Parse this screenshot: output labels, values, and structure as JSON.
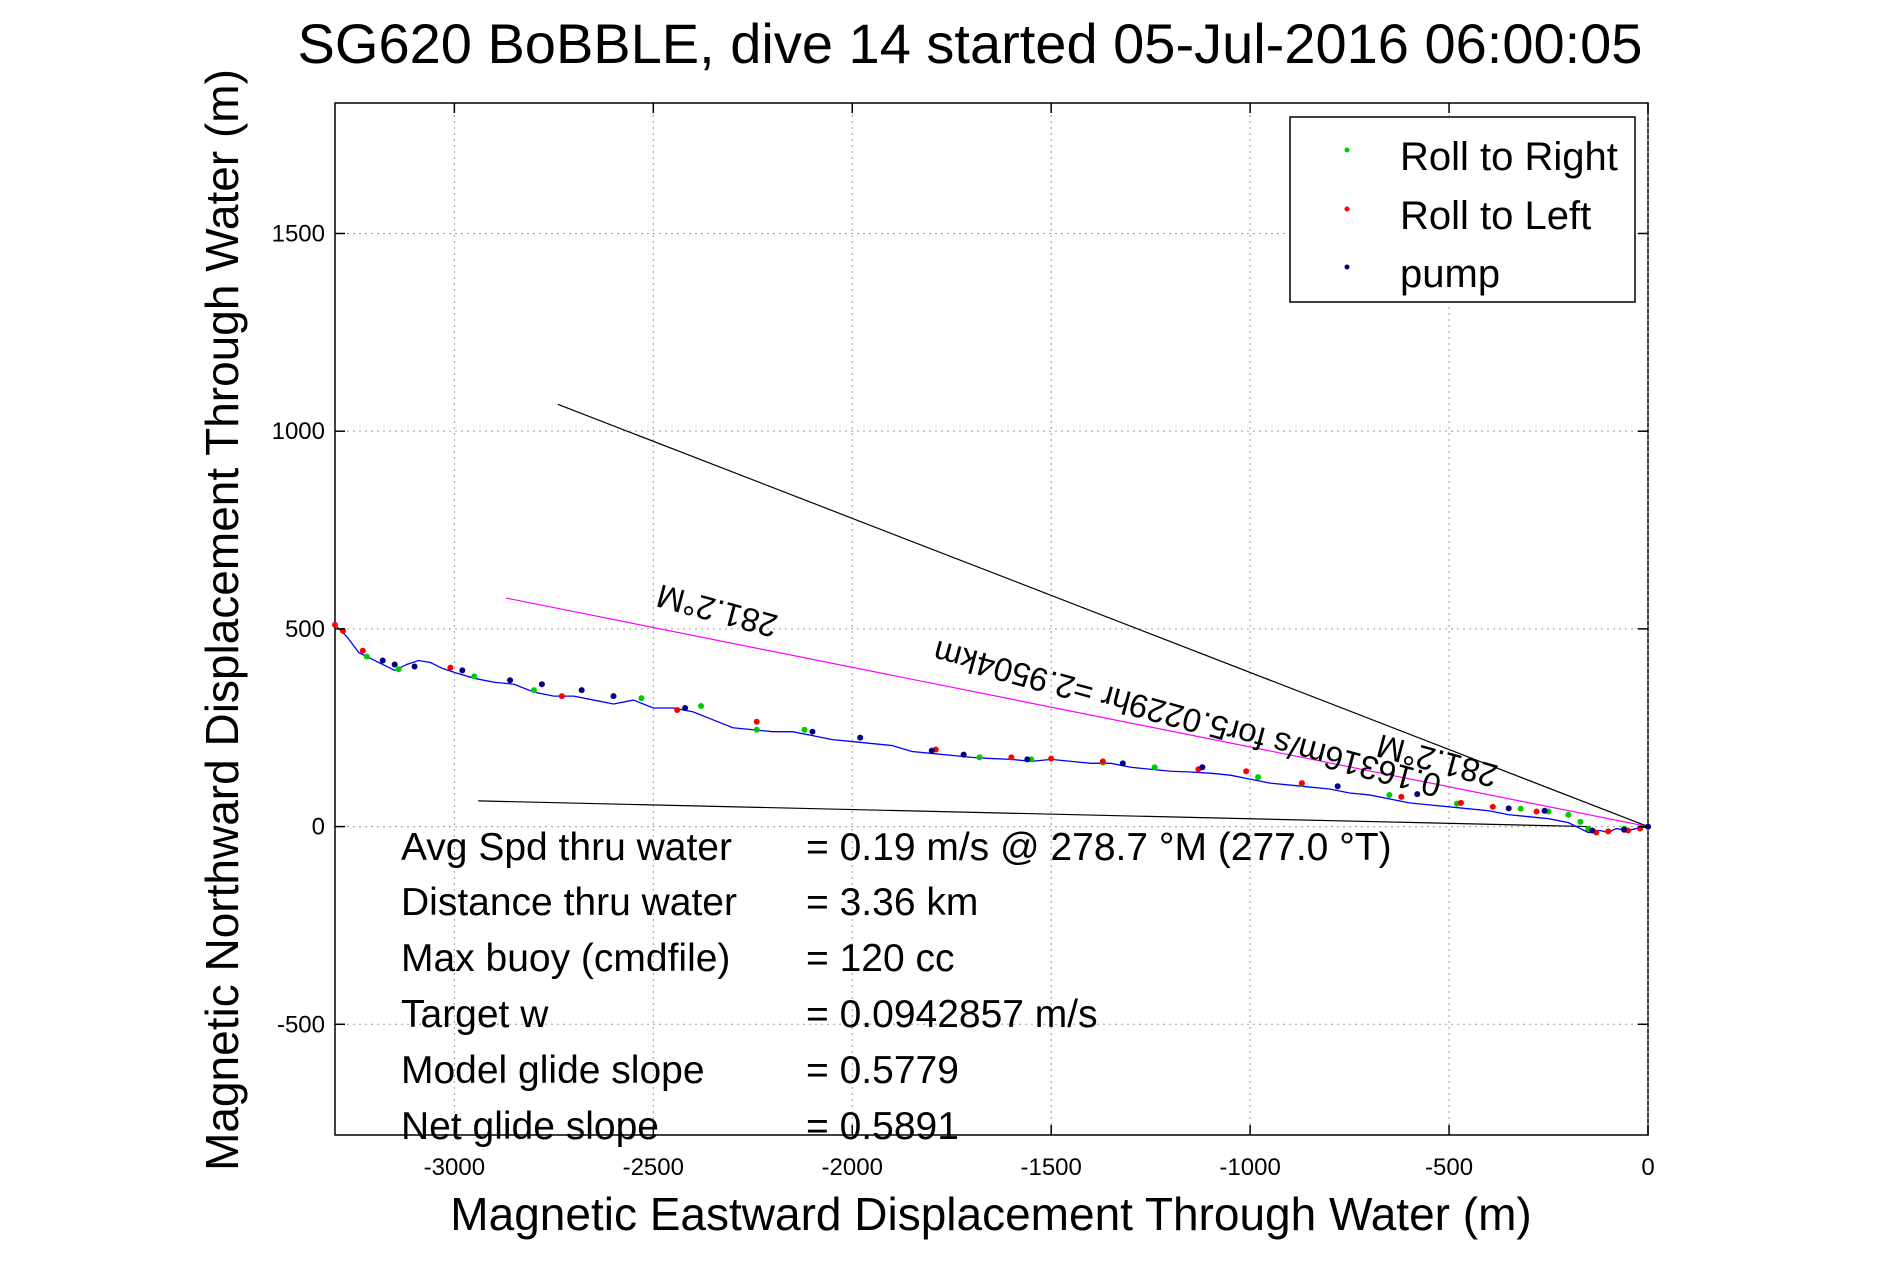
{
  "chart_data": {
    "type": "line",
    "title": "SG620 BoBBLE, dive 14 started 05-Jul-2016 06:00:05",
    "xlabel": "Magnetic Eastward Displacement Through Water (m)",
    "ylabel": "Magnetic Northward Displacement Through Water (m)",
    "xlim": [
      -3300,
      0
    ],
    "ylim": [
      -780,
      1830
    ],
    "xticks": [
      -3000,
      -2500,
      -2000,
      -1500,
      -1000,
      -500,
      0
    ],
    "yticks": [
      -500,
      0,
      500,
      1000,
      1500
    ],
    "grid": true,
    "legend_position": "top-right",
    "colors": {
      "track": "#0000ff",
      "roll_right": "#00cc00",
      "roll_left": "#ff0000",
      "pump": "#000080",
      "heading_line": "#ff00ff",
      "guide_lines": "#000000"
    },
    "legend": [
      {
        "label": "Roll to Right",
        "color": "#00cc00"
      },
      {
        "label": "Roll to Left",
        "color": "#ff0000"
      },
      {
        "label": "pump",
        "color": "#000080"
      }
    ],
    "series": [
      {
        "name": "track",
        "x": [
          -3300,
          -3270,
          -3240,
          -3210,
          -3180,
          -3150,
          -3120,
          -3090,
          -3060,
          -3030,
          -3000,
          -2950,
          -2900,
          -2850,
          -2800,
          -2750,
          -2700,
          -2650,
          -2600,
          -2550,
          -2500,
          -2450,
          -2400,
          -2350,
          -2300,
          -2250,
          -2200,
          -2150,
          -2100,
          -2050,
          -2000,
          -1950,
          -1900,
          -1850,
          -1800,
          -1750,
          -1700,
          -1650,
          -1600,
          -1550,
          -1500,
          -1450,
          -1400,
          -1350,
          -1300,
          -1250,
          -1200,
          -1150,
          -1100,
          -1050,
          -1000,
          -950,
          -900,
          -850,
          -800,
          -750,
          -700,
          -650,
          -600,
          -550,
          -500,
          -450,
          -400,
          -350,
          -300,
          -250,
          -200,
          -170,
          -150,
          -120,
          -100,
          -80,
          -50,
          -30,
          0
        ],
        "y": [
          510,
          480,
          440,
          425,
          410,
          395,
          410,
          420,
          415,
          400,
          390,
          375,
          365,
          360,
          340,
          330,
          330,
          320,
          310,
          320,
          300,
          300,
          290,
          270,
          250,
          245,
          240,
          240,
          230,
          220,
          215,
          210,
          205,
          190,
          185,
          180,
          175,
          172,
          170,
          165,
          170,
          165,
          160,
          160,
          150,
          145,
          140,
          138,
          135,
          130,
          120,
          110,
          105,
          100,
          95,
          85,
          80,
          70,
          60,
          55,
          50,
          45,
          40,
          30,
          25,
          20,
          10,
          -5,
          -15,
          -10,
          -15,
          -5,
          -10,
          -5,
          0
        ]
      },
      {
        "name": "Roll to Right",
        "x": [
          -3220,
          -3140,
          -2950,
          -2800,
          -2530,
          -2380,
          -2240,
          -2120,
          -1680,
          -1550,
          -1370,
          -1240,
          -980,
          -870,
          -650,
          -480,
          -320,
          -250,
          -200,
          -170,
          -150,
          -60
        ],
        "y": [
          430,
          398,
          380,
          345,
          325,
          305,
          245,
          245,
          175,
          170,
          162,
          150,
          125,
          108,
          80,
          58,
          45,
          38,
          30,
          12,
          -5,
          -5
        ]
      },
      {
        "name": "Roll to Left",
        "x": [
          -3300,
          -3280,
          -3230,
          -3010,
          -2730,
          -2440,
          -2240,
          -1790,
          -1600,
          -1500,
          -1370,
          -1130,
          -1010,
          -870,
          -620,
          -470,
          -390,
          -280,
          -130,
          -100,
          -50,
          -20,
          0
        ],
        "y": [
          510,
          495,
          445,
          402,
          330,
          295,
          265,
          195,
          175,
          172,
          165,
          145,
          140,
          110,
          75,
          60,
          50,
          38,
          -15,
          -12,
          -10,
          -5,
          0
        ]
      },
      {
        "name": "pump",
        "x": [
          -3180,
          -3150,
          -3100,
          -2980,
          -2860,
          -2780,
          -2680,
          -2600,
          -2420,
          -2100,
          -1980,
          -1800,
          -1720,
          -1560,
          -1320,
          -1120,
          -780,
          -580,
          -350,
          -260,
          -140,
          -60,
          0
        ],
        "y": [
          420,
          410,
          405,
          395,
          370,
          360,
          345,
          330,
          300,
          240,
          225,
          192,
          182,
          170,
          160,
          150,
          102,
          82,
          46,
          40,
          -10,
          -8,
          0
        ]
      }
    ],
    "heading_line": {
      "x": [
        -2870,
        0
      ],
      "y": [
        578,
        0
      ],
      "label": "281.2°M"
    },
    "guide_lines": [
      {
        "x": [
          -2740,
          0
        ],
        "y": [
          1068,
          0
        ]
      },
      {
        "x": [
          -2940,
          -150
        ],
        "y": [
          65,
          0
        ]
      }
    ],
    "rotated_labels": {
      "heading_upper": "281.2°M",
      "heading_lower": "281.2°M",
      "current_speed": "0.16316m/s for5.0229hr =2.9504km"
    },
    "stats": [
      {
        "label": "Avg Spd thru water",
        "value": "=  0.19 m/s @ 278.7 °M (277.0 °T)"
      },
      {
        "label": "Distance thru water",
        "value": "=  3.36 km"
      },
      {
        "label": "Max buoy (cmdfile)",
        "value": "= 120 cc"
      },
      {
        "label": "Target w",
        "value": "= 0.0942857 m/s"
      },
      {
        "label": "Model glide slope",
        "value": "= 0.5779"
      },
      {
        "label": "Net glide slope",
        "value": "= 0.5891"
      }
    ]
  }
}
